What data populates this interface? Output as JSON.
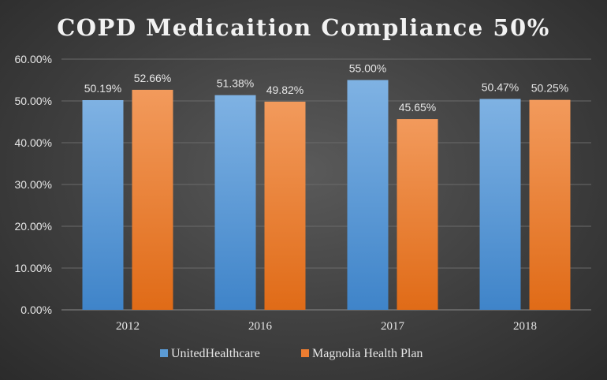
{
  "chart_data": {
    "type": "bar",
    "title": "COPD Medicaition Compliance 50%",
    "categories": [
      "2012",
      "2016",
      "2017",
      "2018"
    ],
    "series": [
      {
        "name": "UnitedHealthcare",
        "color": "#5b9bd5",
        "values": [
          50.19,
          51.38,
          55.0,
          50.47
        ],
        "labels": [
          "50.19%",
          "51.38%",
          "55.00%",
          "50.47%"
        ]
      },
      {
        "name": "Magnolia Health Plan",
        "color": "#ed7d31",
        "values": [
          52.66,
          49.82,
          45.65,
          50.25
        ],
        "labels": [
          "52.66%",
          "49.82%",
          "45.65%",
          "50.25%"
        ]
      }
    ],
    "ylim": [
      0,
      60
    ],
    "yticks": [
      "0.00%",
      "10.00%",
      "20.00%",
      "30.00%",
      "40.00%",
      "50.00%",
      "60.00%"
    ],
    "grid": true,
    "legend_position": "bottom"
  }
}
